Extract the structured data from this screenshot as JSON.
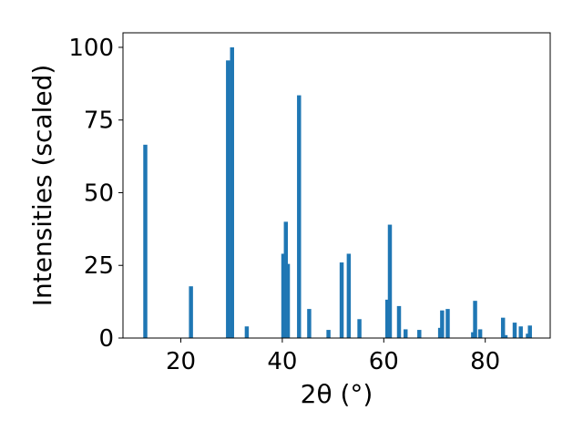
{
  "chart_data": {
    "type": "bar",
    "title": "",
    "xlabel": "2θ (°)",
    "ylabel": "Intensities (scaled)",
    "xlim": [
      8.6,
      92.8
    ],
    "ylim": [
      0,
      105
    ],
    "xticks": [
      20,
      40,
      60,
      80
    ],
    "yticks": [
      0,
      25,
      50,
      75,
      100
    ],
    "grid": false,
    "legend": "none",
    "bar_color": "#1f77b4",
    "bar_width": 0.8,
    "series": [
      {
        "x": [
          13.0,
          22.0,
          29.3,
          30.1,
          33.0,
          40.2,
          40.7,
          41.1,
          43.3,
          45.3,
          49.1,
          51.7,
          53.1,
          55.2,
          60.7,
          61.2,
          63.0,
          64.3,
          67.0,
          71.1,
          71.5,
          72.6,
          77.6,
          78.0,
          79.0,
          83.5,
          84.0,
          85.8,
          87.0,
          88.4,
          88.8
        ],
        "y": [
          66.5,
          17.8,
          95.5,
          100.0,
          4.0,
          29.0,
          40.0,
          25.5,
          83.5,
          10.0,
          2.8,
          26.0,
          29.0,
          6.5,
          13.2,
          39.0,
          11.0,
          3.0,
          2.8,
          3.5,
          9.5,
          10.0,
          2.0,
          12.8,
          3.0,
          7.0,
          1.0,
          5.3,
          4.0,
          1.5,
          4.3
        ]
      }
    ]
  }
}
